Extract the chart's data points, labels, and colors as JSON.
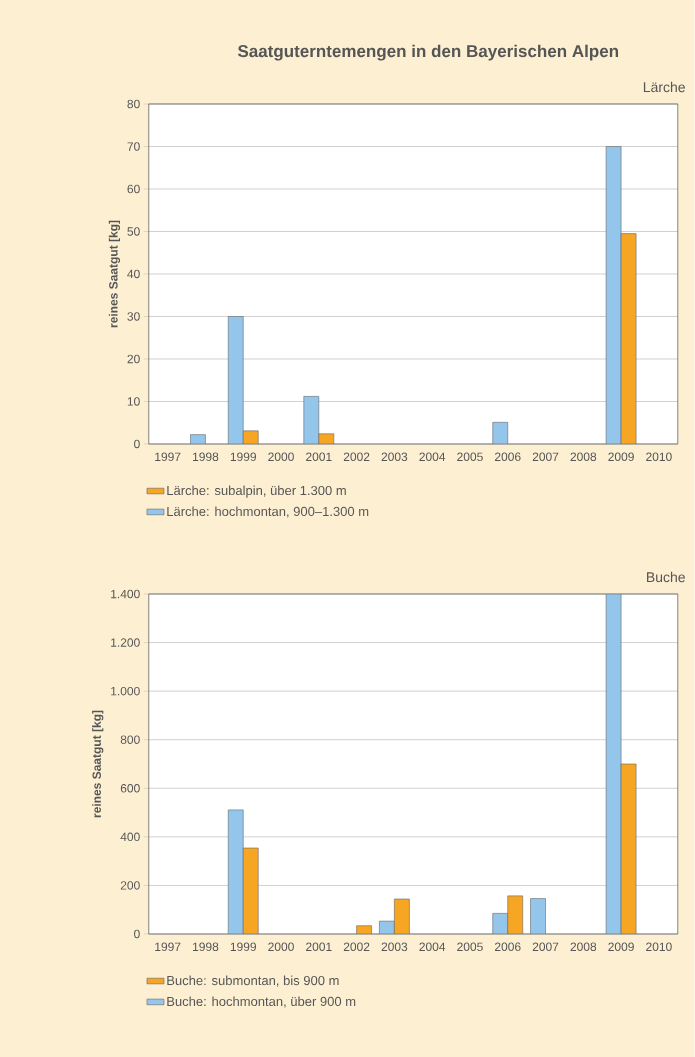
{
  "chart_data": [
    {
      "type": "bar",
      "title": "Saatguterntemengen in den Bayerischen Alpen",
      "subtitle": "Lärche",
      "ylabel": "reines Saatgut [kg]",
      "categories": [
        "1997",
        "1998",
        "1999",
        "2000",
        "2001",
        "2002",
        "2003",
        "2004",
        "2005",
        "2006",
        "2007",
        "2008",
        "2009",
        "2010"
      ],
      "series": [
        {
          "name": "Lärche: hochmontan, 900–1.300 m",
          "color": "#93c6ea",
          "values": [
            null,
            2.2,
            30,
            null,
            11.2,
            null,
            null,
            null,
            null,
            5.1,
            null,
            null,
            70,
            null
          ]
        },
        {
          "name": "Lärche: subalpin, über 1.300 m",
          "color": "#f6a623",
          "values": [
            null,
            null,
            3.1,
            null,
            2.4,
            null,
            null,
            null,
            null,
            null,
            null,
            null,
            49.5,
            null
          ]
        }
      ],
      "ylim": [
        0,
        80
      ],
      "yticks": [
        0,
        10,
        20,
        30,
        40,
        50,
        60,
        70,
        80
      ],
      "grid": "y",
      "legend": "bottom"
    },
    {
      "type": "bar",
      "subtitle": "Buche",
      "ylabel": "reines Saatgut [kg]",
      "categories": [
        "1997",
        "1998",
        "1999",
        "2000",
        "2001",
        "2002",
        "2003",
        "2004",
        "2005",
        "2006",
        "2007",
        "2008",
        "2009",
        "2010"
      ],
      "series": [
        {
          "name": "Buche: hochmontan, über 900 m",
          "color": "#93c6ea",
          "values": [
            null,
            null,
            511,
            null,
            null,
            null,
            53,
            null,
            null,
            85,
            146,
            null,
            1400,
            null
          ]
        },
        {
          "name": "Buche: submontan, bis 900 m",
          "color": "#f6a623",
          "values": [
            null,
            null,
            354,
            null,
            null,
            34,
            144,
            null,
            null,
            157,
            null,
            null,
            700,
            null
          ]
        }
      ],
      "ylim": [
        0,
        1400
      ],
      "yticks": [
        0,
        200,
        400,
        600,
        800,
        {
          "value": 1000,
          "label": "1.000"
        },
        {
          "value": 1200,
          "label": "1.200"
        },
        {
          "value": 1400,
          "label": "1.400"
        }
      ],
      "grid": "y",
      "legend": "bottom"
    }
  ]
}
